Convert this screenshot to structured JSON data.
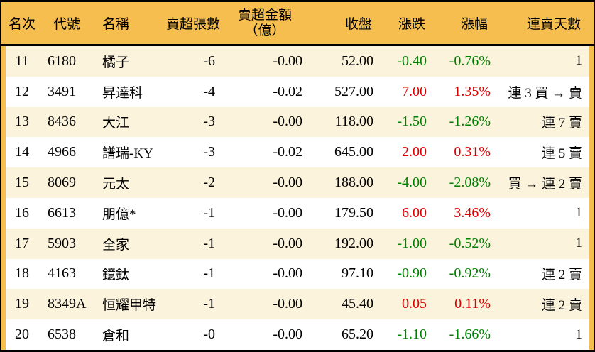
{
  "colors": {
    "frame_and_header_bg": "#F6BE4E",
    "alt_row_bg": "#FCF3DC",
    "up_text": "#DE0000",
    "down_text": "#008000",
    "rule": "#000000"
  },
  "table_headers": {
    "rank": "名次",
    "code": "代號",
    "name": "名稱",
    "volume": "賣超張數",
    "amount_line1": "賣超金額",
    "amount_line2": "（億）",
    "close": "收盤",
    "change": "漲跌",
    "pct": "漲幅",
    "streak": "連賣天數"
  },
  "chart_data": {
    "type": "table",
    "columns": [
      "名次",
      "代號",
      "名稱",
      "賣超張數",
      "賣超金額（億）",
      "收盤",
      "漲跌",
      "漲幅",
      "連賣天數"
    ],
    "rows": [
      {
        "rank": "11",
        "code": "6180",
        "name": "橘子",
        "volume": "-6",
        "amount": "-0.00",
        "close": "52.00",
        "change": "-0.40",
        "pct": "-0.76%",
        "streak": "1",
        "trend": "down"
      },
      {
        "rank": "12",
        "code": "3491",
        "name": "昇達科",
        "volume": "-4",
        "amount": "-0.02",
        "close": "527.00",
        "change": "7.00",
        "pct": "1.35%",
        "streak": "連 3 買 → 賣",
        "trend": "up"
      },
      {
        "rank": "13",
        "code": "8436",
        "name": "大江",
        "volume": "-3",
        "amount": "-0.00",
        "close": "118.00",
        "change": "-1.50",
        "pct": "-1.26%",
        "streak": "連 7 賣",
        "trend": "down"
      },
      {
        "rank": "14",
        "code": "4966",
        "name": "譜瑞-KY",
        "volume": "-3",
        "amount": "-0.02",
        "close": "645.00",
        "change": "2.00",
        "pct": "0.31%",
        "streak": "連 5 賣",
        "trend": "up"
      },
      {
        "rank": "15",
        "code": "8069",
        "name": "元太",
        "volume": "-2",
        "amount": "-0.00",
        "close": "188.00",
        "change": "-4.00",
        "pct": "-2.08%",
        "streak": "買 → 連 2 賣",
        "trend": "down"
      },
      {
        "rank": "16",
        "code": "6613",
        "name": "朋億*",
        "volume": "-1",
        "amount": "-0.00",
        "close": "179.50",
        "change": "6.00",
        "pct": "3.46%",
        "streak": "1",
        "trend": "up"
      },
      {
        "rank": "17",
        "code": "5903",
        "name": "全家",
        "volume": "-1",
        "amount": "-0.00",
        "close": "192.00",
        "change": "-1.00",
        "pct": "-0.52%",
        "streak": "1",
        "trend": "down"
      },
      {
        "rank": "18",
        "code": "4163",
        "name": "鐿鈦",
        "volume": "-1",
        "amount": "-0.00",
        "close": "97.10",
        "change": "-0.90",
        "pct": "-0.92%",
        "streak": "連 2 賣",
        "trend": "down"
      },
      {
        "rank": "19",
        "code": "8349A",
        "name": "恒耀甲特",
        "volume": "-1",
        "amount": "-0.00",
        "close": "45.40",
        "change": "0.05",
        "pct": "0.11%",
        "streak": "連 2 賣",
        "trend": "up"
      },
      {
        "rank": "20",
        "code": "6538",
        "name": "倉和",
        "volume": "-0",
        "amount": "-0.00",
        "close": "65.20",
        "change": "-1.10",
        "pct": "-1.66%",
        "streak": "1",
        "trend": "down"
      }
    ]
  }
}
